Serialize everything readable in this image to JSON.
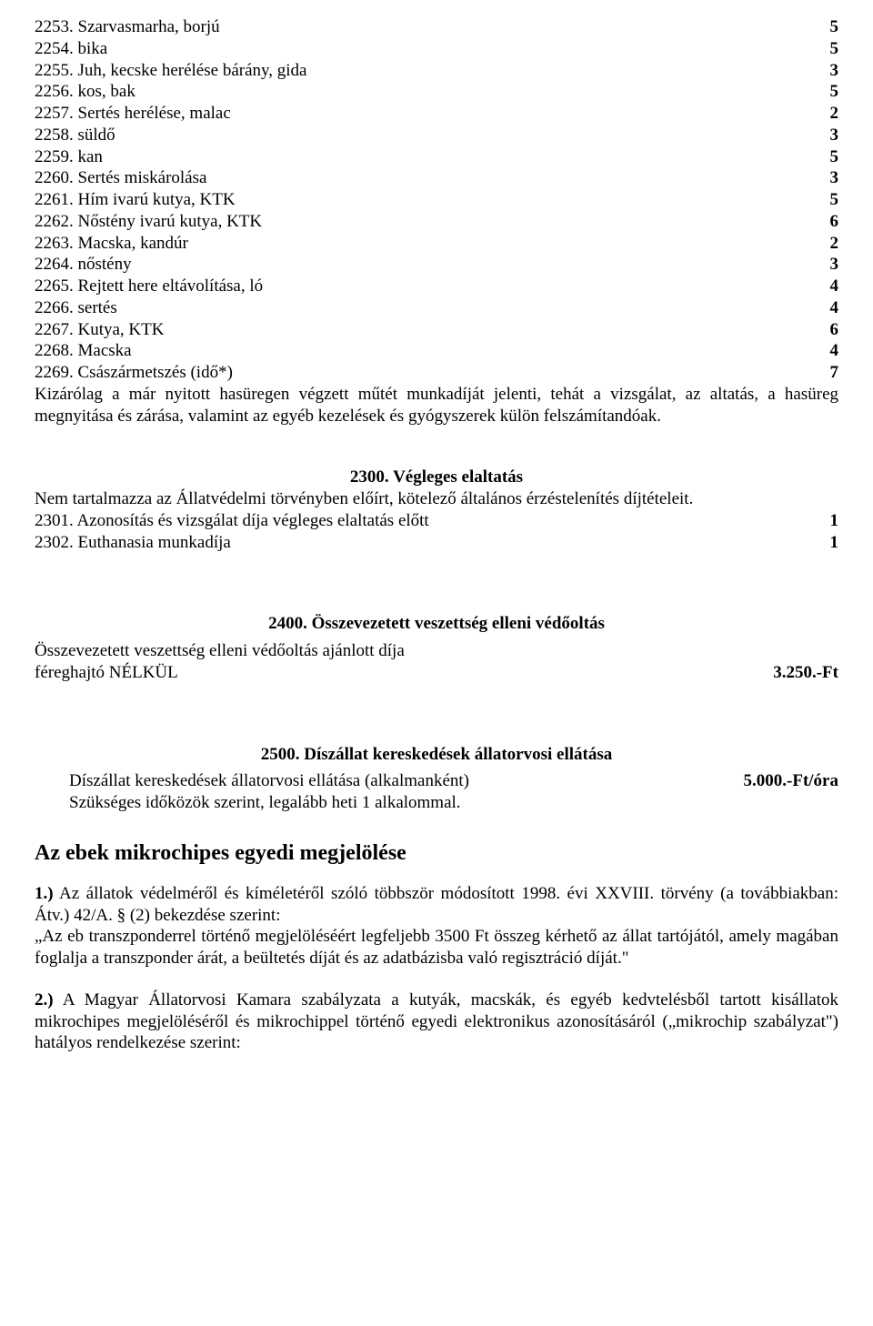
{
  "list": [
    {
      "code": "2253.",
      "label": "Szarvasmarha, borjú",
      "val": "5"
    },
    {
      "code": "2254.",
      "label": "bika",
      "val": "5"
    },
    {
      "code": "2255.",
      "label": "Juh, kecske herélése bárány, gida",
      "val": "3"
    },
    {
      "code": "2256.",
      "label": "kos, bak",
      "val": "5"
    },
    {
      "code": "2257.",
      "label": "Sertés herélése, malac",
      "val": "2"
    },
    {
      "code": "2258.",
      "label": "süldő",
      "val": "3"
    },
    {
      "code": "2259.",
      "label": "kan",
      "val": "5"
    },
    {
      "code": "2260.",
      "label": "Sertés miskárolása",
      "val": "3"
    },
    {
      "code": "2261.",
      "label": "Hím ivarú kutya, KTK",
      "val": "5"
    },
    {
      "code": "2262.",
      "label": "Nőstény ivarú kutya, KTK",
      "val": "6"
    },
    {
      "code": "2263.",
      "label": "Macska, kandúr",
      "val": "2"
    },
    {
      "code": "2264.",
      "label": "nőstény",
      "val": "3"
    },
    {
      "code": "2265.",
      "label": "Rejtett here eltávolítása, ló",
      "val": "4"
    },
    {
      "code": "2266.",
      "label": "sertés",
      "val": "4"
    },
    {
      "code": "2267.",
      "label": "Kutya, KTK",
      "val": "6"
    },
    {
      "code": "2268.",
      "label": "Macska",
      "val": "4"
    },
    {
      "code": "2269.",
      "label": "Császármetszés (idő*)",
      "val": "7"
    }
  ],
  "para_after_list": "Kizárólag a már nyitott hasüregen végzett műtét munkadíját jelenti, tehát a vizsgálat, az altatás, a hasüreg megnyitása és zárása, valamint az egyéb kezelések és gyógyszerek külön felszámítandóak.",
  "s2300": {
    "title": "2300. Végleges elaltatás",
    "intro": "Nem tartalmazza az Állatvédelmi törvényben előírt, kötelező általános érzéstelenítés díjtételeit.",
    "rows": [
      {
        "code": "2301.",
        "label": "Azonosítás és vizsgálat díja végleges elaltatás előtt",
        "val": "1"
      },
      {
        "code": "2302.",
        "label": "Euthanasia munkadíja",
        "val": "1"
      }
    ]
  },
  "s2400": {
    "title": "2400. Összevezetett veszettség elleni védőoltás",
    "line1": "Összevezetett veszettség elleni védőoltás ajánlott díja",
    "line2_left": "féreghajtó NÉLKÜL",
    "line2_right": "3.250.-Ft"
  },
  "s2500": {
    "title": "2500. Díszállat kereskedések állatorvosi ellátása",
    "row_left": "Díszállat kereskedések állatorvosi ellátása (alkalmanként)",
    "row_right": "5.000.-Ft/óra",
    "note": "Szükséges időközök szerint, legalább heti 1 alkalommal."
  },
  "microchip": {
    "heading": "Az ebek mikrochipes egyedi megjelölése",
    "p1_lead": "1.)",
    "p1_text": " Az állatok védelméről és kíméletéről szóló többször módosított 1998. évi XXVIII. törvény (a továbbiakban: Átv.) 42/A. § (2) bekezdése szerint:",
    "p1_quote": "„Az eb transzponderrel történő megjelöléséért legfeljebb 3500 Ft összeg kérhető az állat tartójától, amely magában foglalja a transzponder árát, a beültetés díját és az adatbázisba való regisztráció díját.\"",
    "p2_lead": "2.)",
    "p2_text": " A Magyar Állatorvosi Kamara szabályzata a kutyák, macskák, és egyéb kedvtelésből tartott kisállatok mikrochipes megjelöléséről és mikrochippel történő egyedi elektronikus azonosításáról („mikrochip szabályzat\") hatályos rendelkezése szerint:"
  }
}
